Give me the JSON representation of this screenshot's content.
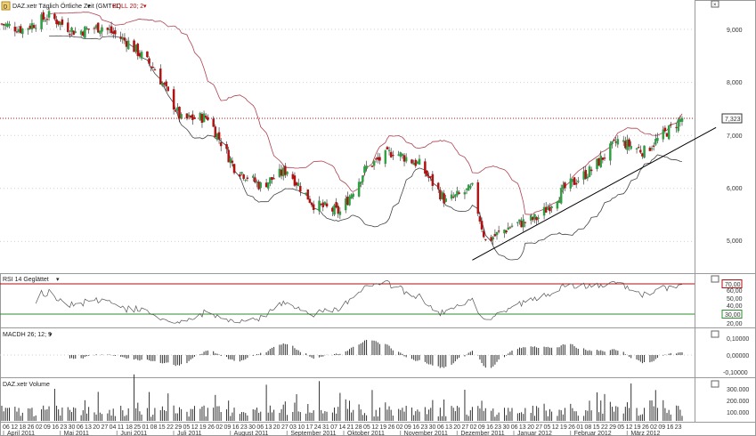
{
  "colors": {
    "bullish": "#2ea043",
    "bearish": "#b01010",
    "boll": "#b04050",
    "boll_lower": "#444444",
    "rsi_line": "#555555",
    "rsi_upper_line": "#b01010",
    "rsi_lower_line": "#2e8b2e",
    "price_line": "#b01010",
    "trend_line": "#000000",
    "grid": "#cfcfcf",
    "macd_bar": "#333333",
    "volume_bar": "#333333"
  },
  "header": {
    "title": "DAZ.xetr Täglich Örtliche Zeit (GMT+1)",
    "title_suffix": "▾",
    "indicator": "BOLL 20; 2",
    "indicator_suffix": "▾"
  },
  "price_marker": "7,323",
  "panels": {
    "rsi": {
      "title": "RSI 14 Geglättet",
      "title_suffix": "▾",
      "upper": "70,00",
      "lower": "30,00"
    },
    "macd": {
      "title": "MACDH 26; 12; 9",
      "title_suffix": "▾"
    },
    "volume": {
      "title": "DAZ.xetr Volume"
    }
  },
  "x_axis": {
    "day_ticks": [
      "06",
      "12",
      "18",
      "26",
      "02",
      "09",
      "16",
      "23",
      "30",
      "06",
      "13",
      "20",
      "27",
      "04",
      "11",
      "18",
      "25",
      "01",
      "08",
      "15",
      "22",
      "29",
      "05",
      "12",
      "19",
      "26",
      "02",
      "09",
      "16",
      "23",
      "30",
      "06",
      "13",
      "20",
      "27",
      "03",
      "10",
      "17",
      "24",
      "31",
      "07",
      "14",
      "21",
      "28",
      "05",
      "12",
      "19",
      "26",
      "02",
      "09",
      "16",
      "23",
      "30",
      "06",
      "13",
      "20",
      "27",
      "02",
      "09",
      "16",
      "23",
      "30",
      "06",
      "13",
      "20",
      "27",
      "05",
      "12",
      "19",
      "26",
      "01",
      "08",
      "15",
      "22",
      "29",
      "05",
      "12",
      "19",
      "26",
      "02",
      "09",
      "16",
      "23"
    ],
    "months": [
      "April 2011",
      "Mai 2011",
      "Juni 2011",
      "Juli 2011",
      "August 2011",
      "September 2011",
      "Oktober 2011",
      "November 2011",
      "Dezember 2011",
      "Januar 2012",
      "Februar 2012",
      "März 2012"
    ]
  },
  "chart_data": [
    {
      "type": "candlestick",
      "title": "DAZ.xetr",
      "y_ticks": [
        "9,000",
        "8,000",
        "7,000",
        "6,000",
        "5,000"
      ],
      "ylim": [
        4.5,
        9.5
      ],
      "x_start": "2011-04-04",
      "x_end": "2012-03-29",
      "bollinger": "BOLL 20; 2",
      "last_close": 7.323,
      "close_path": [
        {
          "date": "2011-04-04",
          "close": 9.1
        },
        {
          "date": "2011-04-15",
          "close": 9.0
        },
        {
          "date": "2011-04-29",
          "close": 9.25
        },
        {
          "date": "2011-05-13",
          "close": 8.95
        },
        {
          "date": "2011-05-27",
          "close": 9.05
        },
        {
          "date": "2011-06-10",
          "close": 8.75
        },
        {
          "date": "2011-06-24",
          "close": 8.25
        },
        {
          "date": "2011-07-08",
          "close": 7.3
        },
        {
          "date": "2011-07-22",
          "close": 7.35
        },
        {
          "date": "2011-08-05",
          "close": 6.4
        },
        {
          "date": "2011-08-19",
          "close": 6.05
        },
        {
          "date": "2011-09-02",
          "close": 6.35
        },
        {
          "date": "2011-09-16",
          "close": 5.7
        },
        {
          "date": "2011-09-30",
          "close": 5.55
        },
        {
          "date": "2011-10-14",
          "close": 6.4
        },
        {
          "date": "2011-10-28",
          "close": 6.7
        },
        {
          "date": "2011-11-11",
          "close": 6.45
        },
        {
          "date": "2011-11-25",
          "close": 5.75
        },
        {
          "date": "2011-12-09",
          "close": 6.0
        },
        {
          "date": "2011-12-16",
          "close": 5.0
        },
        {
          "date": "2011-12-30",
          "close": 5.3
        },
        {
          "date": "2012-01-13",
          "close": 5.45
        },
        {
          "date": "2012-01-27",
          "close": 6.0
        },
        {
          "date": "2012-02-10",
          "close": 6.35
        },
        {
          "date": "2012-02-24",
          "close": 6.9
        },
        {
          "date": "2012-03-09",
          "close": 6.7
        },
        {
          "date": "2012-03-29",
          "close": 7.32
        }
      ],
      "trendline": [
        {
          "date": "2011-12-09",
          "value": 4.65
        },
        {
          "date": "2012-03-30",
          "value": 7.15
        }
      ]
    },
    {
      "type": "line",
      "title": "RSI 14 Geglättet",
      "y_ticks": [
        "70,00",
        "60,00",
        "50,00",
        "40,00",
        "30,00",
        "20,00"
      ],
      "ylim": [
        15,
        85
      ],
      "reference_lines": [
        70,
        30
      ]
    },
    {
      "type": "bar",
      "title": "MACDH 26; 12; 9",
      "y_ticks": [
        "0,10000",
        "0,00000",
        "-0,10000"
      ],
      "ylim": [
        -0.13,
        0.13
      ]
    },
    {
      "type": "bar",
      "title": "DAZ.xetr Volume",
      "y_ticks": [
        "300.000",
        "200.000",
        "100.000"
      ],
      "ylim": [
        0,
        380000
      ]
    }
  ]
}
